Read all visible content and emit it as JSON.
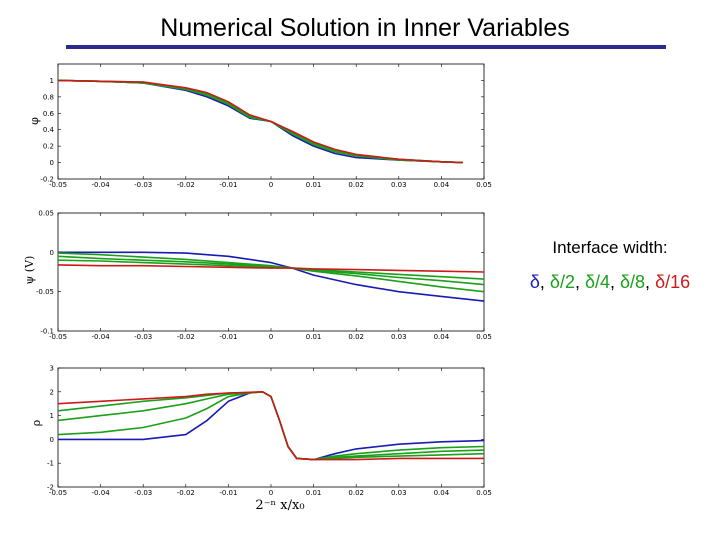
{
  "title": "Numerical Solution in Inner Variables",
  "legend": {
    "title": "Interface width:",
    "items": [
      {
        "label": "δ",
        "color": "#1a1ab4"
      },
      {
        "label": "δ/2",
        "color": "#1aa01a"
      },
      {
        "label": "δ/4",
        "color": "#1aa01a"
      },
      {
        "label": "δ/8",
        "color": "#1aa01a"
      },
      {
        "label": "δ/16",
        "color": "#cc1a1a"
      }
    ],
    "separator": ", "
  },
  "chart_data": [
    {
      "type": "line",
      "ylabel": "φ",
      "xlabel": "",
      "xlim": [
        -0.05,
        0.05
      ],
      "ylim": [
        -0.2,
        1.2
      ],
      "xticks": [
        "-0.05",
        "-0.04",
        "-0.03",
        "-0.02",
        "-0.01",
        "0",
        "0.01",
        "0.02",
        "0.03",
        "0.04",
        "0.05"
      ],
      "yticks": [
        "-0.2",
        "0",
        "0.2",
        "0.4",
        "0.6",
        "0.8",
        "1"
      ],
      "x": [
        -0.05,
        -0.04,
        -0.03,
        -0.02,
        -0.015,
        -0.01,
        -0.005,
        0,
        0.005,
        0.01,
        0.015,
        0.02,
        0.03,
        0.04,
        0.045
      ],
      "series": [
        {
          "name": "δ",
          "color": "#1a1ab4",
          "values": [
            1.0,
            0.99,
            0.97,
            0.88,
            0.8,
            0.69,
            0.54,
            0.5,
            0.33,
            0.2,
            0.11,
            0.06,
            0.03,
            0.01,
            0.0
          ]
        },
        {
          "name": "δ/2",
          "color": "#1aa01a",
          "values": [
            1.0,
            0.99,
            0.97,
            0.89,
            0.82,
            0.71,
            0.55,
            0.5,
            0.35,
            0.22,
            0.13,
            0.08,
            0.03,
            0.01,
            0.0
          ]
        },
        {
          "name": "δ/4",
          "color": "#1aa01a",
          "values": [
            1.0,
            0.99,
            0.97,
            0.9,
            0.83,
            0.72,
            0.56,
            0.5,
            0.36,
            0.23,
            0.14,
            0.09,
            0.04,
            0.01,
            0.0
          ]
        },
        {
          "name": "δ/8",
          "color": "#1aa01a",
          "values": [
            1.0,
            0.99,
            0.98,
            0.9,
            0.84,
            0.73,
            0.57,
            0.5,
            0.37,
            0.24,
            0.15,
            0.09,
            0.04,
            0.01,
            0.0
          ]
        },
        {
          "name": "δ/16",
          "color": "#cc1a1a",
          "values": [
            1.0,
            0.99,
            0.98,
            0.91,
            0.85,
            0.74,
            0.58,
            0.5,
            0.38,
            0.25,
            0.16,
            0.1,
            0.04,
            0.01,
            0.0
          ]
        }
      ]
    },
    {
      "type": "line",
      "ylabel": "ψ (V)",
      "xlabel": "",
      "xlim": [
        -0.05,
        0.05
      ],
      "ylim": [
        -0.1,
        0.05
      ],
      "xticks": [
        "-0.05",
        "-0.04",
        "-0.03",
        "-0.02",
        "-0.01",
        "0",
        "0.01",
        "0.02",
        "0.03",
        "0.04",
        "0.05"
      ],
      "yticks": [
        "-0.1",
        "-0.05",
        "0",
        "0.05"
      ],
      "x": [
        -0.05,
        -0.04,
        -0.03,
        -0.02,
        -0.01,
        0,
        0.005,
        0.01,
        0.02,
        0.03,
        0.04,
        0.05
      ],
      "series": [
        {
          "name": "δ",
          "color": "#1a1ab4",
          "values": [
            0.0,
            0.0,
            0.0,
            -0.001,
            -0.005,
            -0.013,
            -0.02,
            -0.029,
            -0.041,
            -0.05,
            -0.056,
            -0.062
          ]
        },
        {
          "name": "δ/2",
          "color": "#1aa01a",
          "values": [
            -0.001,
            -0.003,
            -0.006,
            -0.009,
            -0.013,
            -0.017,
            -0.02,
            -0.024,
            -0.03,
            -0.037,
            -0.044,
            -0.05
          ]
        },
        {
          "name": "δ/4",
          "color": "#1aa01a",
          "values": [
            -0.005,
            -0.008,
            -0.01,
            -0.012,
            -0.015,
            -0.018,
            -0.02,
            -0.023,
            -0.027,
            -0.032,
            -0.036,
            -0.041
          ]
        },
        {
          "name": "δ/8",
          "color": "#1aa01a",
          "values": [
            -0.01,
            -0.011,
            -0.013,
            -0.015,
            -0.017,
            -0.019,
            -0.02,
            -0.022,
            -0.025,
            -0.028,
            -0.031,
            -0.034
          ]
        },
        {
          "name": "δ/16",
          "color": "#cc1a1a",
          "values": [
            -0.016,
            -0.017,
            -0.017,
            -0.018,
            -0.019,
            -0.02,
            -0.02,
            -0.021,
            -0.022,
            -0.023,
            -0.024,
            -0.025
          ]
        }
      ]
    },
    {
      "type": "line",
      "ylabel": "ρ",
      "xlabel": "2⁻ⁿ x/x₀",
      "xlim": [
        -0.05,
        0.05
      ],
      "ylim": [
        -2,
        3
      ],
      "xticks": [
        "-0.05",
        "-0.04",
        "-0.03",
        "-0.02",
        "-0.01",
        "0",
        "0.01",
        "0.02",
        "0.03",
        "0.04",
        "0.05"
      ],
      "yticks": [
        "-2",
        "-1",
        "0",
        "1",
        "2",
        "3"
      ],
      "x": [
        -0.05,
        -0.04,
        -0.03,
        -0.02,
        -0.015,
        -0.01,
        -0.005,
        -0.002,
        0,
        0.002,
        0.004,
        0.006,
        0.01,
        0.015,
        0.02,
        0.03,
        0.04,
        0.05
      ],
      "series": [
        {
          "name": "δ",
          "color": "#1a1ab4",
          "values": [
            0.0,
            0.0,
            0.0,
            0.2,
            0.8,
            1.6,
            1.95,
            2.0,
            1.8,
            0.8,
            -0.3,
            -0.8,
            -0.85,
            -0.6,
            -0.4,
            -0.2,
            -0.1,
            -0.05
          ]
        },
        {
          "name": "δ/2",
          "color": "#1aa01a",
          "values": [
            0.2,
            0.3,
            0.5,
            0.9,
            1.3,
            1.8,
            1.95,
            2.0,
            1.8,
            0.8,
            -0.3,
            -0.8,
            -0.85,
            -0.7,
            -0.6,
            -0.45,
            -0.35,
            -0.3
          ]
        },
        {
          "name": "δ/4",
          "color": "#1aa01a",
          "values": [
            0.8,
            1.0,
            1.2,
            1.5,
            1.7,
            1.9,
            1.95,
            2.0,
            1.8,
            0.8,
            -0.3,
            -0.8,
            -0.85,
            -0.75,
            -0.7,
            -0.6,
            -0.5,
            -0.45
          ]
        },
        {
          "name": "δ/8",
          "color": "#1aa01a",
          "values": [
            1.2,
            1.4,
            1.6,
            1.75,
            1.85,
            1.95,
            1.97,
            2.0,
            1.8,
            0.8,
            -0.3,
            -0.8,
            -0.85,
            -0.8,
            -0.75,
            -0.7,
            -0.65,
            -0.6
          ]
        },
        {
          "name": "δ/16",
          "color": "#cc1a1a",
          "values": [
            1.5,
            1.6,
            1.7,
            1.8,
            1.9,
            1.95,
            1.98,
            2.0,
            1.8,
            0.8,
            -0.3,
            -0.8,
            -0.85,
            -0.85,
            -0.85,
            -0.8,
            -0.8,
            -0.8
          ]
        }
      ]
    }
  ]
}
